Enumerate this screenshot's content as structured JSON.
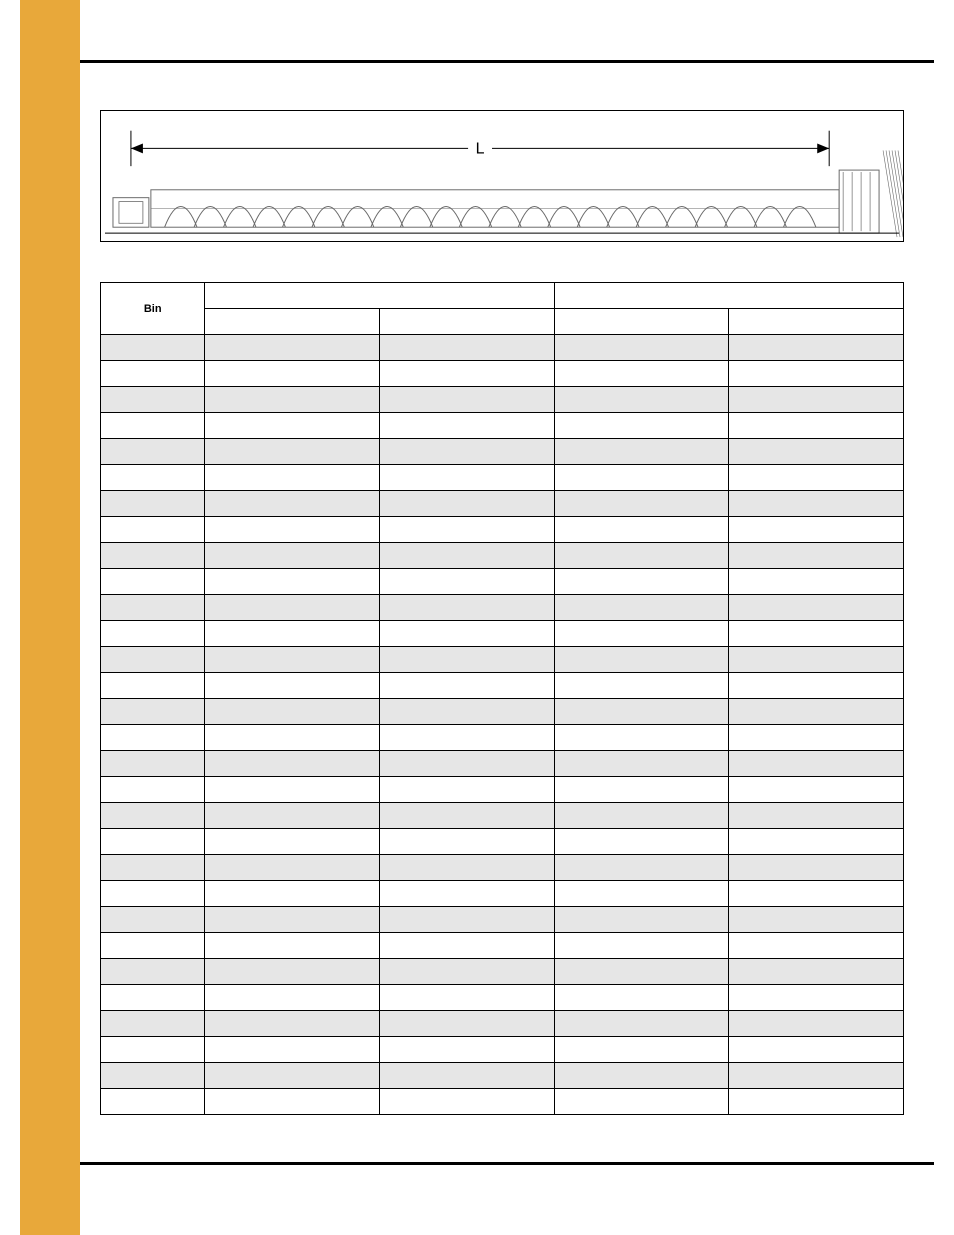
{
  "diagram": {
    "length_label": "L",
    "stroke": "#6a6a6a",
    "coil_count": 22
  },
  "table": {
    "header_bin": "Bin",
    "group_headers": [
      "",
      ""
    ],
    "sub_headers": [
      "",
      "",
      "",
      ""
    ],
    "group_border_col": 3,
    "rows": [
      {
        "cells": [
          "",
          "",
          "",
          "",
          ""
        ],
        "shade": true
      },
      {
        "cells": [
          "",
          "",
          "",
          "",
          ""
        ],
        "shade": false
      },
      {
        "cells": [
          "",
          "",
          "",
          "",
          ""
        ],
        "shade": true
      },
      {
        "cells": [
          "",
          "",
          "",
          "",
          ""
        ],
        "shade": false
      },
      {
        "cells": [
          "",
          "",
          "",
          "",
          ""
        ],
        "shade": true
      },
      {
        "cells": [
          "",
          "",
          "",
          "",
          ""
        ],
        "shade": false
      },
      {
        "cells": [
          "",
          "",
          "",
          "",
          ""
        ],
        "shade": true
      },
      {
        "cells": [
          "",
          "",
          "",
          "",
          ""
        ],
        "shade": false
      },
      {
        "cells": [
          "",
          "",
          "",
          "",
          ""
        ],
        "shade": true
      },
      {
        "cells": [
          "",
          "",
          "",
          "",
          ""
        ],
        "shade": false
      },
      {
        "cells": [
          "",
          "",
          "",
          "",
          ""
        ],
        "shade": true
      },
      {
        "cells": [
          "",
          "",
          "",
          "",
          ""
        ],
        "shade": false
      },
      {
        "cells": [
          "",
          "",
          "",
          "",
          ""
        ],
        "shade": true
      },
      {
        "cells": [
          "",
          "",
          "",
          "",
          ""
        ],
        "shade": false
      },
      {
        "cells": [
          "",
          "",
          "",
          "",
          ""
        ],
        "shade": true
      },
      {
        "cells": [
          "",
          "",
          "",
          "",
          ""
        ],
        "shade": false
      },
      {
        "cells": [
          "",
          "",
          "",
          "",
          ""
        ],
        "shade": true
      },
      {
        "cells": [
          "",
          "",
          "",
          "",
          ""
        ],
        "shade": false
      },
      {
        "cells": [
          "",
          "",
          "",
          "",
          ""
        ],
        "shade": true
      },
      {
        "cells": [
          "",
          "",
          "",
          "",
          ""
        ],
        "shade": false
      },
      {
        "cells": [
          "",
          "",
          "",
          "",
          ""
        ],
        "shade": true
      },
      {
        "cells": [
          "",
          "",
          "",
          "",
          ""
        ],
        "shade": false
      },
      {
        "cells": [
          "",
          "",
          "",
          "",
          ""
        ],
        "shade": true
      },
      {
        "cells": [
          "",
          "",
          "",
          "",
          ""
        ],
        "shade": false
      },
      {
        "cells": [
          "",
          "",
          "",
          "",
          ""
        ],
        "shade": true
      },
      {
        "cells": [
          "",
          "",
          "",
          "",
          ""
        ],
        "shade": false
      },
      {
        "cells": [
          "",
          "",
          "",
          "",
          ""
        ],
        "shade": true
      },
      {
        "cells": [
          "",
          "",
          "",
          "",
          ""
        ],
        "shade": false
      },
      {
        "cells": [
          "",
          "",
          "",
          "",
          ""
        ],
        "shade": true
      },
      {
        "cells": [
          "",
          "",
          "",
          "",
          ""
        ],
        "shade": false
      }
    ]
  },
  "colors": {
    "gold": "#e8a83a",
    "shade": "#e6e6e6",
    "rule": "#000000"
  }
}
